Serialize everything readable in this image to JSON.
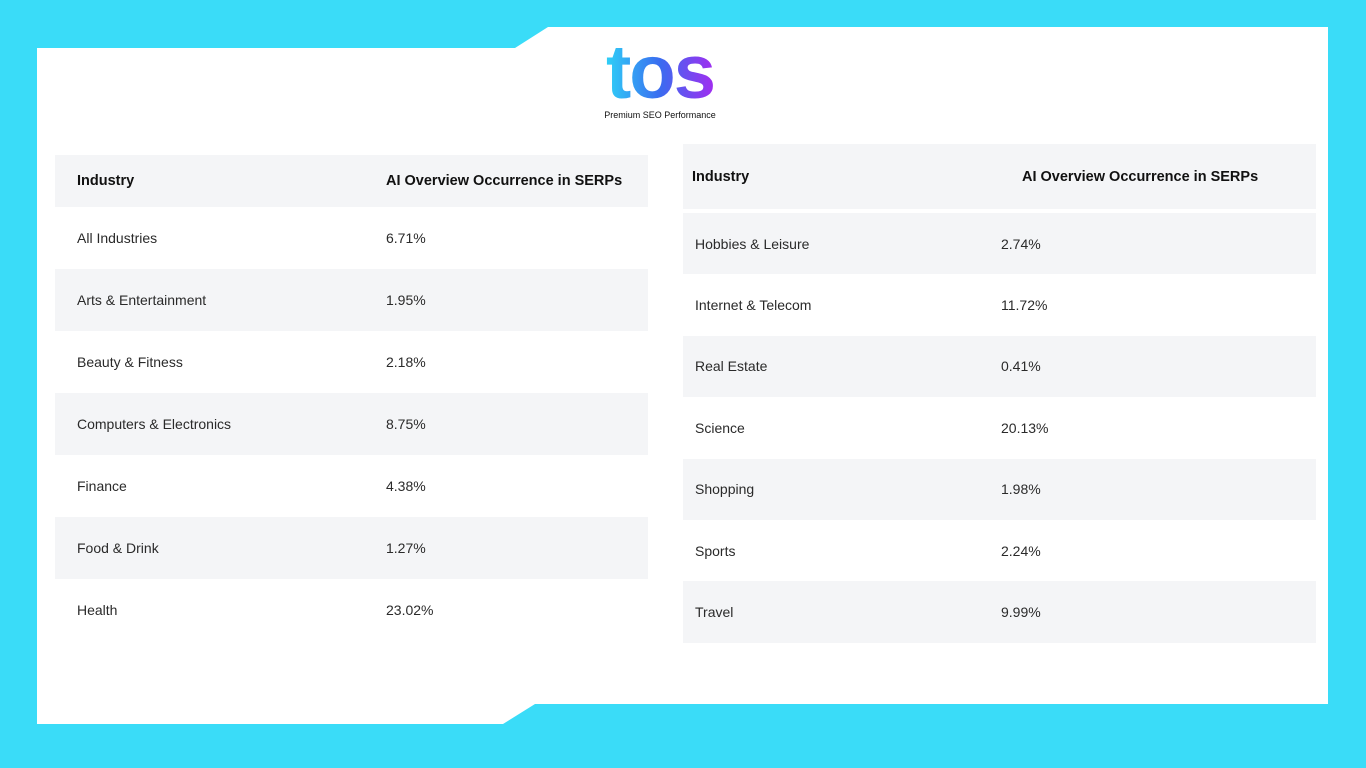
{
  "header": {
    "logo": "tos",
    "tagline": "Premium SEO Performance"
  },
  "tables": [
    {
      "columns": [
        "Industry",
        "AI Overview Occurrence in SERPs"
      ],
      "rows": [
        [
          "All Industries",
          "6.71%"
        ],
        [
          "Arts & Entertainment",
          "1.95%"
        ],
        [
          "Beauty & Fitness",
          "2.18%"
        ],
        [
          "Computers & Electronics",
          "8.75%"
        ],
        [
          "Finance",
          "4.38%"
        ],
        [
          "Food & Drink",
          "1.27%"
        ],
        [
          "Health",
          "23.02%"
        ]
      ]
    },
    {
      "columns": [
        "Industry",
        "AI Overview Occurrence in SERPs"
      ],
      "rows": [
        [
          "Hobbies & Leisure",
          "2.74%"
        ],
        [
          "Internet & Telecom",
          "11.72%"
        ],
        [
          "Real Estate",
          "0.41%"
        ],
        [
          "Science",
          "20.13%"
        ],
        [
          "Shopping",
          "1.98%"
        ],
        [
          "Sports",
          "2.24%"
        ],
        [
          "Travel",
          "9.99%"
        ]
      ]
    }
  ]
}
